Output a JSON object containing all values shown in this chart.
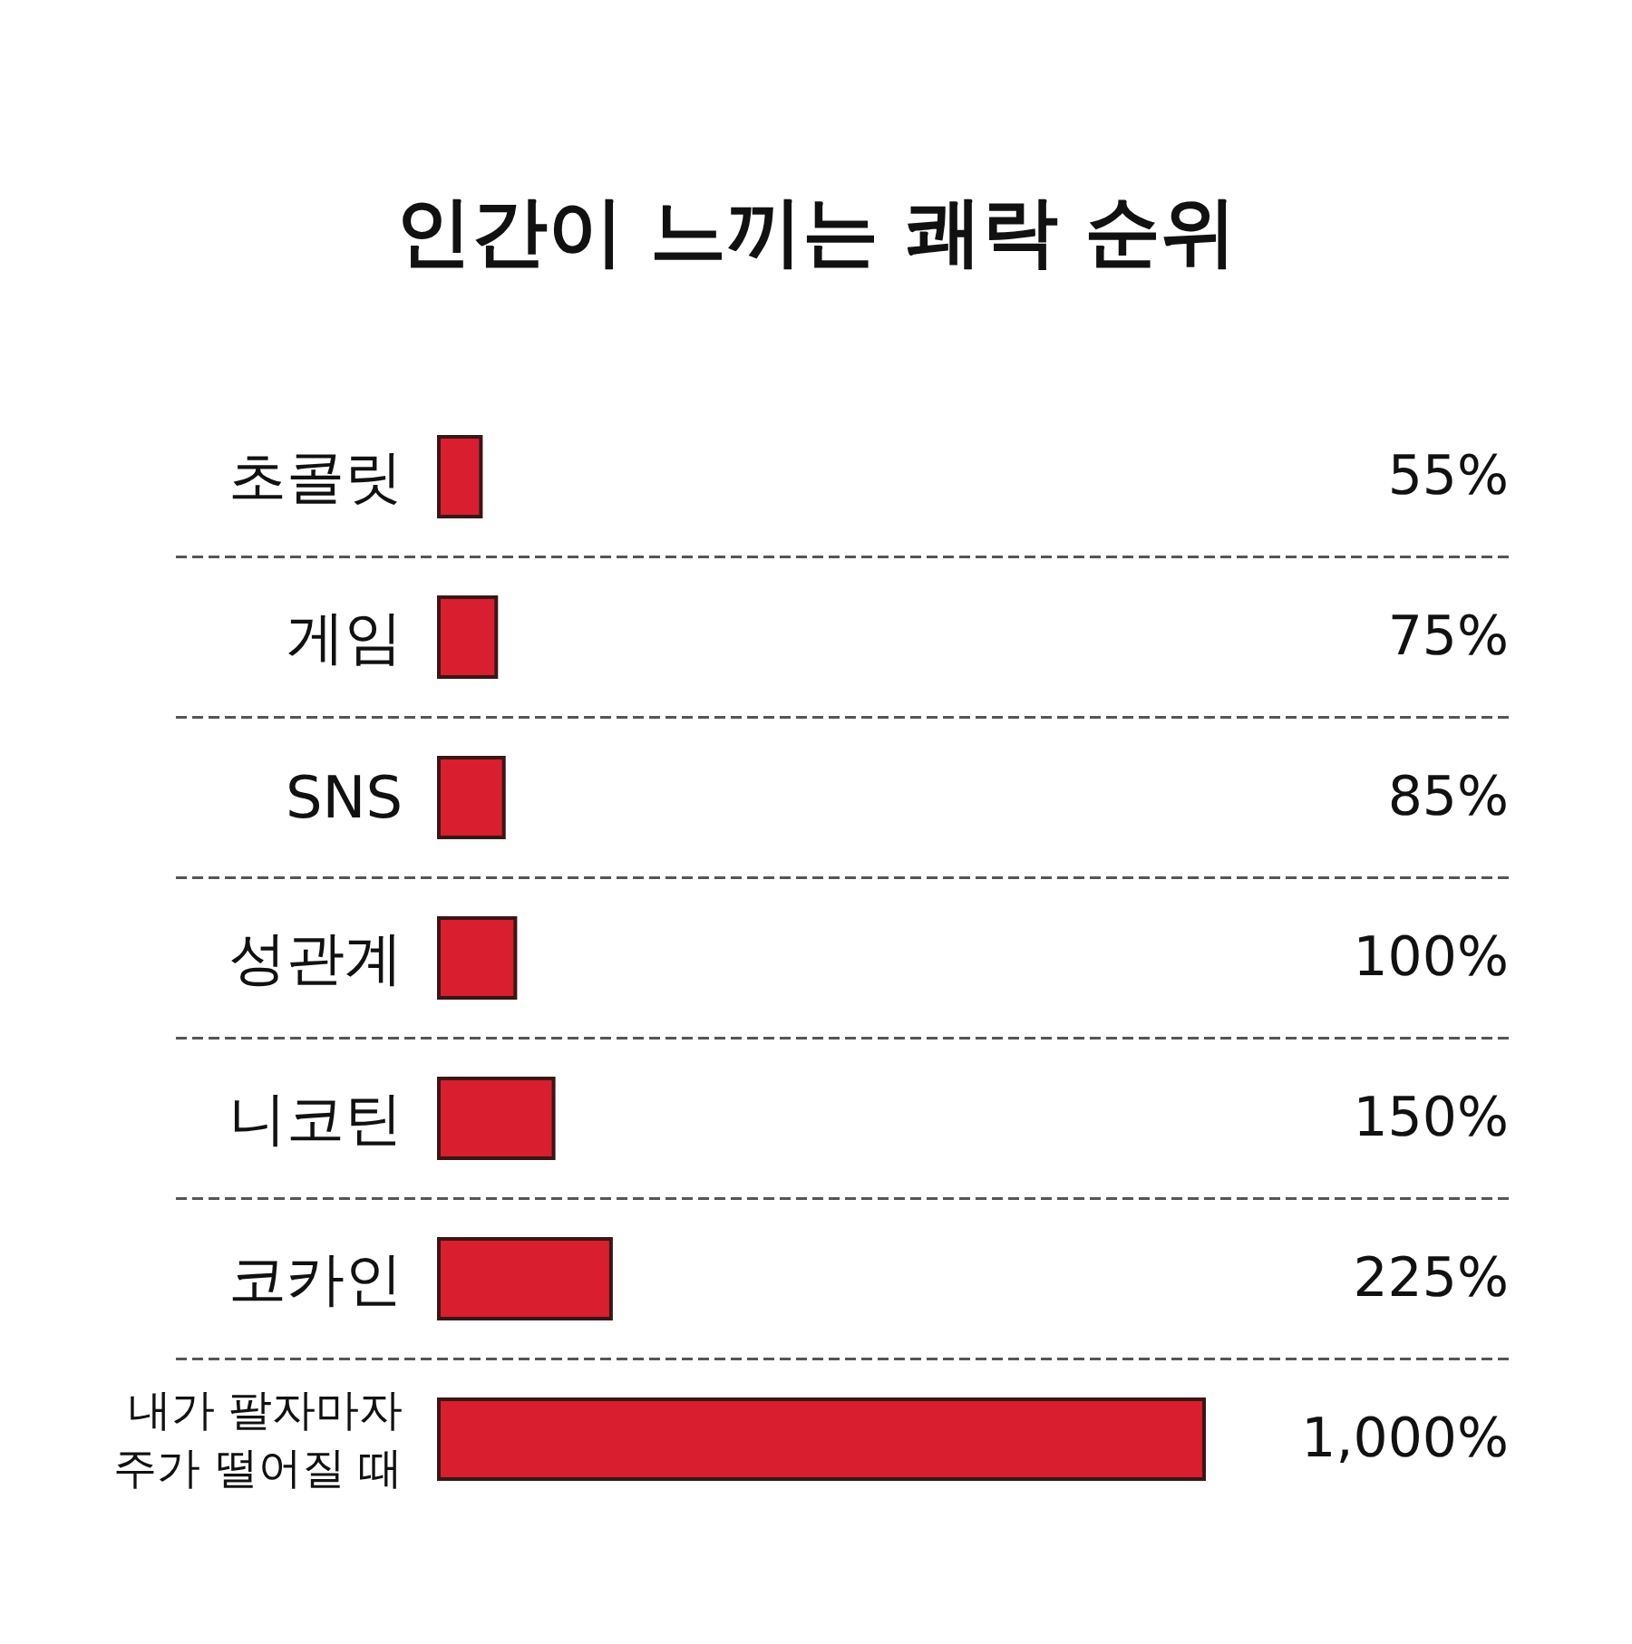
{
  "chart_data": {
    "type": "bar",
    "orientation": "horizontal",
    "title": "인간이 느끼는 쾌락 순위",
    "categories": [
      "초콜릿",
      "게임",
      "SNS",
      "성관계",
      "니코틴",
      "코카인",
      "내가 팔자마자 주가 떨어질 때"
    ],
    "values": [
      55,
      75,
      85,
      100,
      150,
      225,
      1000
    ],
    "value_labels": [
      "55%",
      "75%",
      "85%",
      "100%",
      "150%",
      "225%",
      "1,000%"
    ],
    "color": "#d81e2f",
    "grid": "y"
  }
}
